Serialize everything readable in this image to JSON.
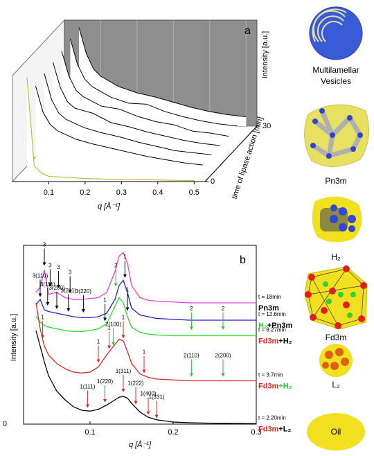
{
  "chart_data": [
    {
      "type": "waterfall",
      "title": "a",
      "xlabel": "q [Å⁻¹]",
      "ylabel": "Intensity [a.u.]",
      "zlabel": "time of lipase action [min]",
      "x": [
        0.04,
        0.06,
        0.08,
        0.1,
        0.15,
        0.2,
        0.25,
        0.3,
        0.35,
        0.4,
        0.45,
        0.5
      ],
      "z": [
        30,
        25,
        20,
        15,
        10,
        5,
        0
      ],
      "series": [
        {
          "color": "#000000",
          "values": [
            9.5,
            7,
            5.5,
            4.8,
            3.8,
            3.2,
            2.8,
            2.3,
            1.8,
            1.4,
            1.1,
            0.9
          ]
        },
        {
          "color": "#000000",
          "values": [
            9.3,
            6.8,
            5.4,
            4.7,
            3.7,
            3.1,
            3.0,
            2.3,
            1.8,
            1.4,
            1.1,
            0.9
          ]
        },
        {
          "color": "#000000",
          "values": [
            9.0,
            6.6,
            5.2,
            4.6,
            3.7,
            3.4,
            2.7,
            2.2,
            1.9,
            1.3,
            1.1,
            0.8
          ]
        },
        {
          "color": "#000000",
          "values": [
            8.8,
            6.4,
            5.0,
            4.4,
            3.9,
            3.0,
            2.6,
            2.1,
            1.7,
            1.3,
            1.0,
            0.8
          ]
        },
        {
          "color": "#000000",
          "values": [
            8.6,
            6.1,
            4.8,
            4.2,
            3.4,
            2.9,
            2.5,
            2.0,
            1.6,
            1.2,
            1.0,
            0.8
          ]
        },
        {
          "color": "#000000",
          "values": [
            8.3,
            5.8,
            4.6,
            4.0,
            3.2,
            2.7,
            2.3,
            1.9,
            1.5,
            1.2,
            0.9,
            0.7
          ]
        },
        {
          "color": "#b5b020",
          "values": [
            10,
            1.5,
            0.8,
            0.5,
            0.4,
            0.3,
            0.25,
            0.2,
            0.2,
            0.15,
            0.12,
            0.1
          ]
        }
      ],
      "xlim": [
        0,
        0.53
      ],
      "xticks": [
        0.1,
        0.2,
        0.3,
        0.4,
        0.5
      ],
      "ylim": [
        0,
        10
      ],
      "zlim": [
        0,
        30
      ],
      "zticks": [
        0,
        30
      ]
    },
    {
      "type": "line",
      "title": "b",
      "xlabel": "q [Å⁻¹]",
      "ylabel": "Intensity [a.u.]",
      "x": [
        0.035,
        0.04,
        0.045,
        0.05,
        0.06,
        0.07,
        0.08,
        0.09,
        0.1,
        0.11,
        0.12,
        0.13,
        0.135,
        0.14,
        0.145,
        0.15,
        0.16,
        0.17,
        0.18,
        0.2,
        0.22,
        0.25,
        0.3
      ],
      "series": [
        {
          "name": "t = 18min",
          "color": "#e040e0",
          "phase": [
            {
              "text": "Pn3m",
              "color": "#000000"
            }
          ],
          "values": [
            7.6,
            7.9,
            8.9,
            7.5,
            7.6,
            7.3,
            7.2,
            7.2,
            7.25,
            7.3,
            7.6,
            8.8,
            9.7,
            9.9,
            9.3,
            8.0,
            7.3,
            7.15,
            7.1,
            7.05,
            7.0,
            7.0,
            7.0
          ]
        },
        {
          "name": "t = 12.6min",
          "color": "#1f1fd0",
          "phase": [
            {
              "text": "H₂",
              "color": "#22cc22"
            },
            {
              "text": "+Pn3m",
              "color": "#000000"
            }
          ],
          "values": [
            6.9,
            7.2,
            6.6,
            6.5,
            6.4,
            6.3,
            6.2,
            6.15,
            6.15,
            6.2,
            6.4,
            7.2,
            8.0,
            8.3,
            7.6,
            6.7,
            6.3,
            6.2,
            6.1,
            6.05,
            6.0,
            6.0,
            6.0
          ]
        },
        {
          "name": "t = 8.27min",
          "color": "#22dd22",
          "phase": [
            {
              "text": "Fd3m",
              "color": "#e8231d"
            },
            {
              "text": "+H₂",
              "color": "#000000"
            }
          ],
          "values": [
            6.2,
            5.9,
            5.7,
            5.6,
            5.5,
            5.4,
            5.35,
            5.35,
            5.4,
            5.5,
            5.8,
            6.8,
            7.3,
            7.0,
            6.2,
            5.6,
            5.3,
            5.2,
            5.15,
            5.1,
            5.1,
            5.1,
            5.1
          ]
        },
        {
          "name": "t = 3.7min",
          "color": "#e8231d",
          "phase": [
            {
              "text": "Fd3m",
              "color": "#e8231d"
            },
            {
              "text": "+H₂",
              "color": "#22cc22"
            }
          ],
          "values": [
            7.0,
            5.5,
            4.5,
            4.0,
            3.5,
            3.2,
            3.0,
            2.95,
            3.0,
            3.3,
            4.0,
            4.6,
            4.9,
            4.8,
            4.2,
            3.5,
            2.9,
            2.7,
            2.6,
            2.55,
            2.5,
            2.5,
            2.5
          ]
        },
        {
          "name": "t = 2.20min",
          "color": "#000000",
          "phase": [
            {
              "text": "Fd3m",
              "color": "#e8231d"
            },
            {
              "text": "+L₂",
              "color": "#000000"
            }
          ],
          "values": [
            5.4,
            4.5,
            3.6,
            2.8,
            1.9,
            1.4,
            1.0,
            0.8,
            0.75,
            0.85,
            1.1,
            1.4,
            1.55,
            1.6,
            1.5,
            1.2,
            0.7,
            0.4,
            0.25,
            0.12,
            0.08,
            0.05,
            0.03
          ]
        }
      ],
      "annotations": [
        {
          "text": "3",
          "x": 0.045,
          "y": 9.1,
          "color": "#000000"
        },
        {
          "text": "3",
          "x": 0.052,
          "y": 7.9,
          "color": "#000000"
        },
        {
          "text": "3",
          "x": 0.062,
          "y": 7.8,
          "color": "#000000"
        },
        {
          "text": "3",
          "x": 0.076,
          "y": 7.5,
          "color": "#000000"
        },
        {
          "text": "3(110)",
          "x": 0.04,
          "y": 7.3,
          "color": "#000000"
        },
        {
          "text": "3(111)",
          "x": 0.049,
          "y": 6.8,
          "color": "#000000"
        },
        {
          "text": "3(200)",
          "x": 0.06,
          "y": 6.6,
          "color": "#000000"
        },
        {
          "text": "3(211)",
          "x": 0.074,
          "y": 6.45,
          "color": "#000000"
        },
        {
          "text": "3(220)",
          "x": 0.092,
          "y": 6.4,
          "color": "#000000"
        },
        {
          "text": "2",
          "x": 0.131,
          "y": 7.9,
          "color": "#22cc22"
        },
        {
          "text": "1",
          "x": 0.142,
          "y": 8.4,
          "color": "#000000"
        },
        {
          "text": "2",
          "x": 0.222,
          "y": 5.4,
          "color": "#22cc22"
        },
        {
          "text": "2",
          "x": 0.26,
          "y": 5.4,
          "color": "#22cc22"
        },
        {
          "text": "1",
          "x": 0.118,
          "y": 5.9,
          "color": "#000000"
        },
        {
          "text": "1",
          "x": 0.145,
          "y": 6.5,
          "color": "#000000"
        },
        {
          "text": "2(100)",
          "x": 0.128,
          "y": 4.5,
          "color": "#22cc22"
        },
        {
          "text": "1",
          "x": 0.043,
          "y": 4.9,
          "color": "#e8231d"
        },
        {
          "text": "1",
          "x": 0.11,
          "y": 3.5,
          "color": "#e8231d"
        },
        {
          "text": "1",
          "x": 0.123,
          "y": 4.3,
          "color": "#e8231d"
        },
        {
          "text": "1",
          "x": 0.14,
          "y": 4.9,
          "color": "#e8231d"
        },
        {
          "text": "1",
          "x": 0.165,
          "y": 2.9,
          "color": "#e8231d"
        },
        {
          "text": "2(110)",
          "x": 0.222,
          "y": 2.7,
          "color": "#22cc22"
        },
        {
          "text": "2(200)",
          "x": 0.26,
          "y": 2.7,
          "color": "#22cc22"
        },
        {
          "text": "1(111)",
          "x": 0.097,
          "y": 0.9,
          "color": "#e8231d"
        },
        {
          "text": "1(220)",
          "x": 0.118,
          "y": 1.2,
          "color": "#e8231d"
        },
        {
          "text": "1(311)",
          "x": 0.14,
          "y": 1.8,
          "color": "#e8231d"
        },
        {
          "text": "1(222)",
          "x": 0.155,
          "y": 1.1,
          "color": "#e8231d"
        },
        {
          "text": "1(400)",
          "x": 0.17,
          "y": 0.5,
          "color": "#e8231d"
        },
        {
          "text": "1(331)",
          "x": 0.18,
          "y": 0.3,
          "color": "#e8231d"
        }
      ],
      "xlim": [
        0.02,
        0.3
      ],
      "xticks": [
        0.1,
        0.2,
        0.3
      ],
      "ylim": [
        0,
        10
      ],
      "yticks": [
        0
      ]
    }
  ],
  "illustration_labels": [
    "Multilamellar",
    "Vesicles",
    "Pn3m",
    "H₂",
    "Fd3m",
    "L₂",
    "Oil"
  ]
}
